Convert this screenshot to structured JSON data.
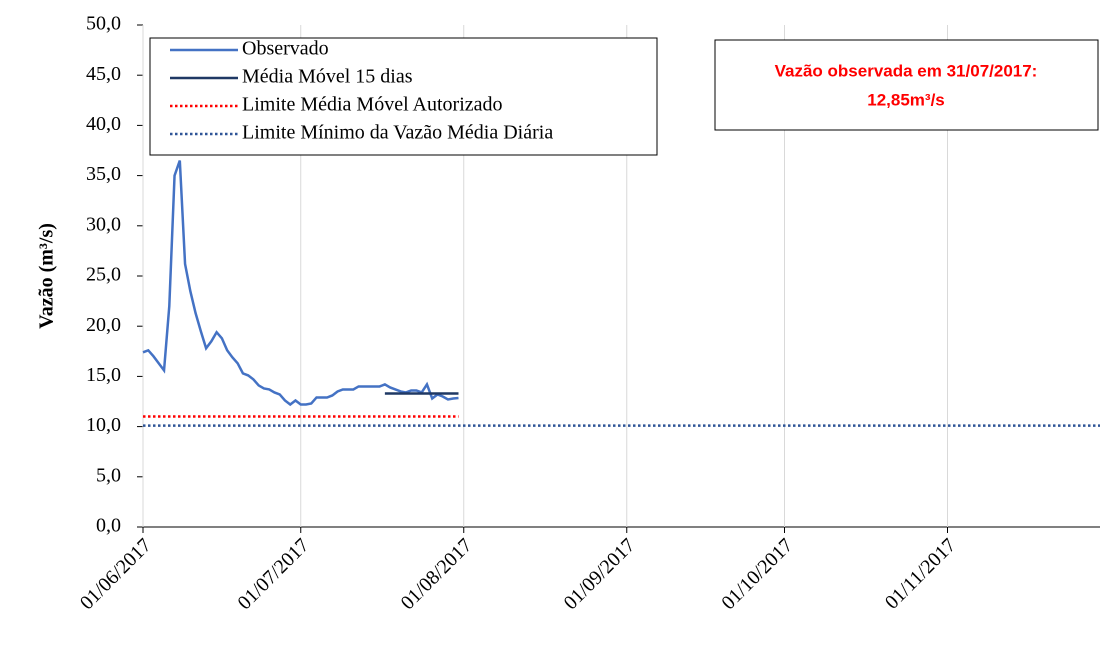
{
  "chart_data": {
    "type": "line",
    "y_label": "Vazão (m³/s)",
    "annotation": [
      "Vazão observada em 31/07/2017:",
      "12,85m³/s"
    ],
    "xlim": [
      "01/06/2017",
      "30/11/2017"
    ],
    "xticks": [
      "01/06/2017",
      "01/07/2017",
      "01/08/2017",
      "01/09/2017",
      "01/10/2017",
      "01/11/2017"
    ],
    "ylim": [
      0,
      50
    ],
    "yticks": [
      {
        "value": 0,
        "label": "0,0"
      },
      {
        "value": 5,
        "label": "5,0"
      },
      {
        "value": 10,
        "label": "10,0"
      },
      {
        "value": 15,
        "label": "15,0"
      },
      {
        "value": 20,
        "label": "20,0"
      },
      {
        "value": 25,
        "label": "25,0"
      },
      {
        "value": 30,
        "label": "30,0"
      },
      {
        "value": 35,
        "label": "35,0"
      },
      {
        "value": 40,
        "label": "40,0"
      },
      {
        "value": 45,
        "label": "45,0"
      },
      {
        "value": 50,
        "label": "50,0"
      }
    ],
    "grid": "x",
    "legend": "upper left",
    "series": [
      {
        "name": "Observado",
        "color": "#4472c4",
        "style": "solid",
        "x": [
          "01/06/2017",
          "02/06/2017",
          "03/06/2017",
          "04/06/2017",
          "05/06/2017",
          "06/06/2017",
          "07/06/2017",
          "08/06/2017",
          "09/06/2017",
          "10/06/2017",
          "11/06/2017",
          "12/06/2017",
          "13/06/2017",
          "14/06/2017",
          "15/06/2017",
          "16/06/2017",
          "17/06/2017",
          "18/06/2017",
          "19/06/2017",
          "20/06/2017",
          "21/06/2017",
          "22/06/2017",
          "23/06/2017",
          "24/06/2017",
          "25/06/2017",
          "26/06/2017",
          "27/06/2017",
          "28/06/2017",
          "29/06/2017",
          "30/06/2017",
          "01/07/2017",
          "02/07/2017",
          "03/07/2017",
          "04/07/2017",
          "05/07/2017",
          "06/07/2017",
          "07/07/2017",
          "08/07/2017",
          "09/07/2017",
          "10/07/2017",
          "11/07/2017",
          "12/07/2017",
          "13/07/2017",
          "14/07/2017",
          "15/07/2017",
          "16/07/2017",
          "17/07/2017",
          "18/07/2017",
          "19/07/2017",
          "20/07/2017",
          "21/07/2017",
          "22/07/2017",
          "23/07/2017",
          "24/07/2017",
          "25/07/2017",
          "26/07/2017",
          "27/07/2017",
          "28/07/2017",
          "29/07/2017",
          "30/07/2017",
          "31/07/2017"
        ],
        "values": [
          17.4,
          17.6,
          17.0,
          16.3,
          15.6,
          22.0,
          35.0,
          36.5,
          26.2,
          23.5,
          21.3,
          19.5,
          17.8,
          18.5,
          19.4,
          18.8,
          17.6,
          16.9,
          16.3,
          15.3,
          15.1,
          14.7,
          14.1,
          13.8,
          13.7,
          13.4,
          13.2,
          12.6,
          12.2,
          12.6,
          12.2,
          12.2,
          12.3,
          12.9,
          12.9,
          12.9,
          13.1,
          13.5,
          13.7,
          13.7,
          13.7,
          14.0,
          14.0,
          14.0,
          14.0,
          14.0,
          14.2,
          13.9,
          13.7,
          13.5,
          13.4,
          13.6,
          13.6,
          13.4,
          14.2,
          12.8,
          13.2,
          13.0,
          12.7,
          12.8,
          12.85
        ]
      },
      {
        "name": "Média Móvel 15 dias",
        "color": "#1f3864",
        "style": "solid",
        "x": [
          "17/07/2017",
          "31/07/2017"
        ],
        "values": [
          13.3,
          13.3
        ]
      },
      {
        "name": "Limite Média Móvel Autorizado",
        "color": "#ff0000",
        "style": "dotted",
        "x": [
          "01/06/2017",
          "31/07/2017"
        ],
        "values": [
          11.0,
          11.0
        ]
      },
      {
        "name": "Limite Mínimo da Vazão Média Diária",
        "color": "#2f5597",
        "style": "dotted",
        "x": [
          "01/06/2017",
          "30/11/2017"
        ],
        "values": [
          10.1,
          10.1
        ]
      }
    ]
  }
}
